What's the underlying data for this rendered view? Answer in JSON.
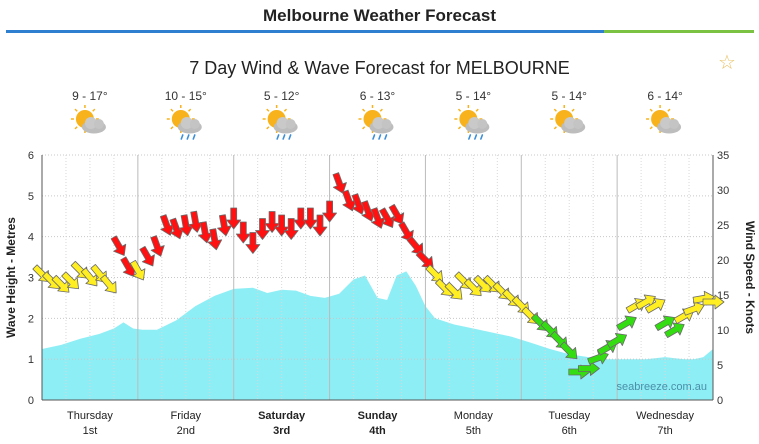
{
  "page": {
    "title": "Melbourne Weather Forecast"
  },
  "chart_data": {
    "type": "area",
    "title": "7 Day Wind & Wave Forecast for MELBOURNE",
    "watermark": "seabreeze.com.au",
    "y_left": {
      "label": "Wave Height - Metres",
      "range": [
        0,
        6
      ],
      "ticks": [
        0,
        1,
        2,
        3,
        4,
        5,
        6
      ]
    },
    "y_right": {
      "label": "Wind Speed - Knots",
      "range": [
        0,
        35
      ],
      "ticks": [
        0,
        5,
        10,
        15,
        20,
        25,
        30,
        35
      ]
    },
    "x_range": [
      0,
      7
    ],
    "grid": true,
    "days": [
      {
        "name": "Thursday",
        "date": "1st",
        "bold": false,
        "temp": "9 - 17°",
        "icon": "partly-cloudy-icon"
      },
      {
        "name": "Friday",
        "date": "2nd",
        "bold": false,
        "temp": "10 - 15°",
        "icon": "partly-cloudy-rain-icon"
      },
      {
        "name": "Saturday",
        "date": "3rd",
        "bold": true,
        "temp": "5 - 12°",
        "icon": "partly-cloudy-rain-icon"
      },
      {
        "name": "Sunday",
        "date": "4th",
        "bold": true,
        "temp": "6 - 13°",
        "icon": "partly-cloudy-rain-icon"
      },
      {
        "name": "Monday",
        "date": "5th",
        "bold": false,
        "temp": "5 - 14°",
        "icon": "partly-cloudy-rain-icon"
      },
      {
        "name": "Tuesday",
        "date": "6th",
        "bold": false,
        "temp": "5 - 14°",
        "icon": "partly-cloudy-icon"
      },
      {
        "name": "Wednesday",
        "date": "7th",
        "bold": false,
        "temp": "6 - 14°",
        "icon": "partly-cloudy-icon"
      }
    ],
    "wave_series": {
      "name": "Wave Height",
      "color": "#8eeef5",
      "x": [
        0,
        0.2,
        0.4,
        0.6,
        0.75,
        0.85,
        0.95,
        1.05,
        1.2,
        1.4,
        1.6,
        1.8,
        2.0,
        2.2,
        2.35,
        2.5,
        2.65,
        2.8,
        2.95,
        3.1,
        3.25,
        3.37,
        3.5,
        3.6,
        3.7,
        3.8,
        3.9,
        4.0,
        4.1,
        4.3,
        4.5,
        4.7,
        4.9,
        5.1,
        5.3,
        5.5,
        5.7,
        5.9,
        6.1,
        6.3,
        6.5,
        6.7,
        6.8,
        6.9,
        7.0
      ],
      "y": [
        1.25,
        1.35,
        1.5,
        1.62,
        1.75,
        1.9,
        1.75,
        1.72,
        1.72,
        1.95,
        2.3,
        2.55,
        2.72,
        2.75,
        2.62,
        2.7,
        2.68,
        2.55,
        2.5,
        2.6,
        2.95,
        3.05,
        2.5,
        2.45,
        3.05,
        3.15,
        2.8,
        2.3,
        2.0,
        1.85,
        1.75,
        1.65,
        1.55,
        1.4,
        1.25,
        1.12,
        1.05,
        1.0,
        1.0,
        1.0,
        1.05,
        1.0,
        1.0,
        1.05,
        1.25
      ]
    },
    "wind_series": {
      "name": "Wind Speed",
      "colors": {
        "low": "#33dd11",
        "mid": "#ffee22",
        "high": "#ff1111"
      },
      "x": [
        0.0,
        0.1,
        0.2,
        0.3,
        0.4,
        0.5,
        0.6,
        0.7,
        0.8,
        0.9,
        1.0,
        1.1,
        1.2,
        1.3,
        1.4,
        1.5,
        1.6,
        1.7,
        1.8,
        1.9,
        2.0,
        2.1,
        2.2,
        2.3,
        2.4,
        2.5,
        2.6,
        2.7,
        2.8,
        2.9,
        3.0,
        3.1,
        3.2,
        3.3,
        3.4,
        3.5,
        3.6,
        3.7,
        3.8,
        3.9,
        4.0,
        4.1,
        4.2,
        4.3,
        4.4,
        4.5,
        4.6,
        4.7,
        4.8,
        4.9,
        5.0,
        5.1,
        5.2,
        5.3,
        5.4,
        5.5,
        5.6,
        5.7,
        5.8,
        5.9,
        6.0,
        6.1,
        6.2,
        6.3,
        6.4,
        6.5,
        6.6,
        6.7,
        6.8,
        6.9,
        7.0
      ],
      "y": [
        18,
        17,
        16.5,
        17,
        18.5,
        17.5,
        18,
        16.5,
        22,
        19,
        18.5,
        20.5,
        22,
        25,
        24.5,
        25,
        25.5,
        24,
        23,
        25,
        26,
        24,
        22.5,
        24.5,
        25.5,
        25,
        24.5,
        26,
        26,
        25,
        27,
        31,
        28.5,
        28,
        27,
        26,
        26,
        26.5,
        24,
        22,
        20,
        18,
        16,
        15.5,
        17,
        16,
        16.5,
        16.5,
        15.5,
        14.5,
        13.5,
        12,
        11,
        10,
        8.5,
        7,
        4,
        4.5,
        6,
        7.5,
        8.5,
        11,
        13.5,
        14,
        13.5,
        11,
        10,
        12,
        13,
        14.5,
        14
      ],
      "direction_deg": [
        135,
        135,
        135,
        135,
        135,
        140,
        140,
        140,
        150,
        150,
        150,
        150,
        160,
        160,
        160,
        170,
        170,
        170,
        170,
        170,
        180,
        180,
        180,
        180,
        180,
        180,
        180,
        180,
        180,
        180,
        180,
        160,
        160,
        160,
        160,
        160,
        150,
        150,
        150,
        140,
        135,
        135,
        135,
        135,
        135,
        135,
        135,
        135,
        135,
        135,
        135,
        135,
        135,
        135,
        135,
        135,
        90,
        90,
        70,
        60,
        60,
        60,
        60,
        60,
        60,
        60,
        60,
        60,
        70,
        80,
        90
      ]
    }
  }
}
